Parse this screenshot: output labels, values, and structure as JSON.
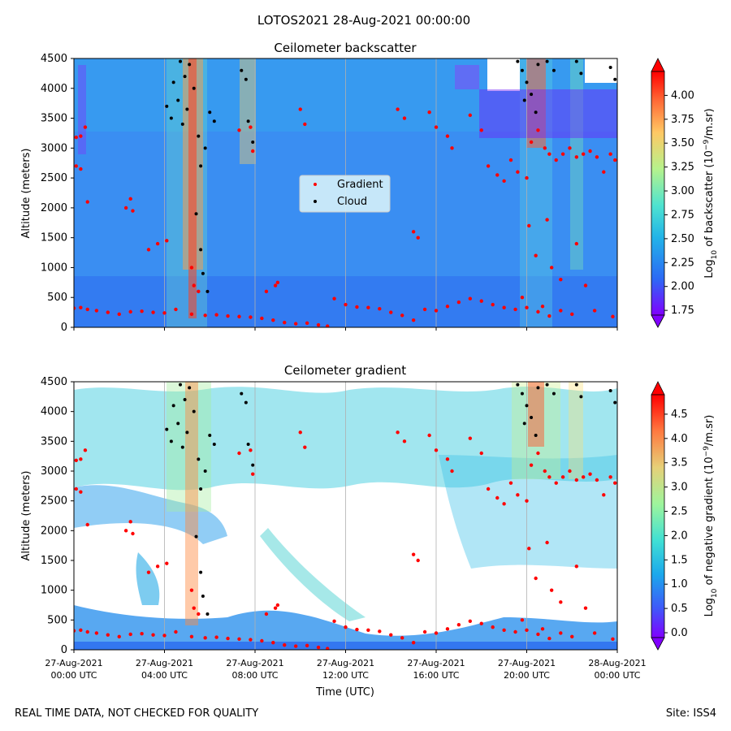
{
  "figure": {
    "title": "LOTOS2021 28-Aug-2021 00:00:00",
    "footer_left": "REAL TIME DATA, NOT CHECKED FOR QUALITY",
    "footer_right": "Site: ISS4"
  },
  "colors": {
    "gradient_points": "#ff0000",
    "cloud_points": "#000000",
    "background": "#3a8ef2",
    "grid": "#b0b0b0"
  },
  "chart_data": [
    {
      "type": "heatmap",
      "title": "Ceilometer backscatter",
      "ylabel": "Altitude (meters)",
      "xlabel": "",
      "xlim": [
        0,
        24
      ],
      "ylim": [
        0,
        4500
      ],
      "grid": true,
      "x_tick_values": [
        0,
        4,
        8,
        12,
        16,
        20,
        24
      ],
      "x_tick_labels_hidden": true,
      "y_ticks": [
        0,
        500,
        1000,
        1500,
        2000,
        2500,
        3000,
        3500,
        4000,
        4500
      ],
      "legend": {
        "placement": "center",
        "entries": [
          "Gradient",
          "Cloud"
        ]
      },
      "colorbar": {
        "label_main": "Log",
        "label_sub": "10",
        "label_rest": " of backscatter (10",
        "label_exp": "−9",
        "label_end": "/m.sr)",
        "range": [
          1.7,
          4.25
        ],
        "ticks": [
          "1.75",
          "2.00",
          "2.25",
          "2.50",
          "2.75",
          "3.00",
          "3.25",
          "3.50",
          "3.75",
          "4.00"
        ],
        "tick_values": [
          1.75,
          2.0,
          2.25,
          2.5,
          2.75,
          3.0,
          3.25,
          3.5,
          3.75,
          4.0
        ]
      },
      "series": [
        {
          "name": "Gradient",
          "points": [
            [
              0.0,
              320
            ],
            [
              0.3,
              330
            ],
            [
              0.6,
              300
            ],
            [
              1.0,
              280
            ],
            [
              1.5,
              250
            ],
            [
              2.0,
              220
            ],
            [
              2.5,
              260
            ],
            [
              3.0,
              270
            ],
            [
              3.5,
              250
            ],
            [
              4.0,
              240
            ],
            [
              4.5,
              300
            ],
            [
              5.2,
              220
            ],
            [
              5.8,
              200
            ],
            [
              6.3,
              210
            ],
            [
              6.8,
              190
            ],
            [
              7.3,
              180
            ],
            [
              7.8,
              170
            ],
            [
              8.3,
              150
            ],
            [
              8.8,
              120
            ],
            [
              9.3,
              80
            ],
            [
              9.8,
              60
            ],
            [
              10.3,
              70
            ],
            [
              10.8,
              40
            ],
            [
              11.2,
              20
            ],
            [
              11.5,
              480
            ],
            [
              12.0,
              380
            ],
            [
              12.5,
              340
            ],
            [
              13.0,
              330
            ],
            [
              13.5,
              310
            ],
            [
              14.0,
              250
            ],
            [
              14.5,
              200
            ],
            [
              15.0,
              120
            ],
            [
              15.5,
              300
            ],
            [
              16.0,
              280
            ],
            [
              16.5,
              350
            ],
            [
              17.0,
              420
            ],
            [
              17.5,
              480
            ],
            [
              18.0,
              440
            ],
            [
              18.5,
              380
            ],
            [
              19.0,
              330
            ],
            [
              19.5,
              300
            ],
            [
              20.0,
              330
            ],
            [
              20.5,
              260
            ],
            [
              21.0,
              190
            ],
            [
              21.5,
              280
            ],
            [
              22.0,
              220
            ],
            [
              23.0,
              280
            ],
            [
              23.8,
              180
            ],
            [
              0.1,
              3180
            ],
            [
              0.3,
              3200
            ],
            [
              0.5,
              3350
            ],
            [
              0.1,
              2700
            ],
            [
              0.3,
              2650
            ],
            [
              0.6,
              2100
            ],
            [
              2.3,
              2000
            ],
            [
              2.5,
              2150
            ],
            [
              2.6,
              1950
            ],
            [
              3.3,
              1300
            ],
            [
              3.7,
              1400
            ],
            [
              4.1,
              1450
            ],
            [
              5.2,
              1000
            ],
            [
              5.3,
              700
            ],
            [
              5.5,
              600
            ],
            [
              7.3,
              3300
            ],
            [
              7.8,
              3350
            ],
            [
              7.9,
              2950
            ],
            [
              8.5,
              600
            ],
            [
              8.9,
              700
            ],
            [
              9.0,
              750
            ],
            [
              10.0,
              3650
            ],
            [
              10.2,
              3400
            ],
            [
              15.0,
              1600
            ],
            [
              15.2,
              1500
            ],
            [
              14.3,
              3650
            ],
            [
              14.6,
              3500
            ],
            [
              15.7,
              3600
            ],
            [
              16.0,
              3350
            ],
            [
              16.5,
              3200
            ],
            [
              16.7,
              3000
            ],
            [
              17.5,
              3550
            ],
            [
              18.0,
              3300
            ],
            [
              18.3,
              2700
            ],
            [
              18.7,
              2550
            ],
            [
              19.0,
              2450
            ],
            [
              19.3,
              2800
            ],
            [
              19.6,
              2600
            ],
            [
              20.0,
              2500
            ],
            [
              20.2,
              3100
            ],
            [
              20.5,
              3300
            ],
            [
              20.8,
              3000
            ],
            [
              21.0,
              2900
            ],
            [
              21.3,
              2800
            ],
            [
              21.6,
              2900
            ],
            [
              21.9,
              3000
            ],
            [
              22.2,
              2850
            ],
            [
              22.5,
              2900
            ],
            [
              22.8,
              2950
            ],
            [
              23.1,
              2850
            ],
            [
              23.4,
              2600
            ],
            [
              23.7,
              2900
            ],
            [
              23.9,
              2800
            ],
            [
              20.1,
              1700
            ],
            [
              20.4,
              1200
            ],
            [
              20.9,
              1800
            ],
            [
              21.1,
              1000
            ],
            [
              21.5,
              800
            ],
            [
              22.2,
              1400
            ],
            [
              22.6,
              700
            ],
            [
              19.8,
              500
            ],
            [
              20.7,
              350
            ]
          ]
        },
        {
          "name": "Cloud",
          "points": [
            [
              4.1,
              3700
            ],
            [
              4.3,
              3500
            ],
            [
              4.4,
              4100
            ],
            [
              4.6,
              3800
            ],
            [
              4.8,
              3400
            ],
            [
              5.0,
              3650
            ],
            [
              5.1,
              4400
            ],
            [
              5.3,
              4000
            ],
            [
              5.5,
              3200
            ],
            [
              5.6,
              2700
            ],
            [
              5.4,
              1900
            ],
            [
              5.6,
              1300
            ],
            [
              5.7,
              900
            ],
            [
              5.9,
              600
            ],
            [
              6.0,
              3600
            ],
            [
              6.2,
              3450
            ],
            [
              4.7,
              4450
            ],
            [
              4.9,
              4200
            ],
            [
              5.8,
              3000
            ],
            [
              7.4,
              4300
            ],
            [
              7.6,
              4150
            ],
            [
              7.9,
              3100
            ],
            [
              7.7,
              3450
            ],
            [
              19.6,
              4450
            ],
            [
              19.8,
              4300
            ],
            [
              20.0,
              4100
            ],
            [
              20.2,
              3900
            ],
            [
              20.5,
              4400
            ],
            [
              20.9,
              4450
            ],
            [
              21.2,
              4300
            ],
            [
              20.4,
              3600
            ],
            [
              19.9,
              3800
            ],
            [
              22.2,
              4450
            ],
            [
              22.4,
              4250
            ],
            [
              23.9,
              4150
            ],
            [
              23.7,
              4350
            ]
          ]
        }
      ]
    },
    {
      "type": "heatmap",
      "title": "Ceilometer gradient",
      "ylabel": "Altitude (meters)",
      "xlabel": "Time (UTC)",
      "xlim": [
        0,
        24
      ],
      "ylim": [
        0,
        4500
      ],
      "grid": true,
      "x_ticks": [
        {
          "value": 0,
          "line1": "27-Aug-2021",
          "line2": "00:00 UTC"
        },
        {
          "value": 4,
          "line1": "27-Aug-2021",
          "line2": "04:00 UTC"
        },
        {
          "value": 8,
          "line1": "27-Aug-2021",
          "line2": "08:00 UTC"
        },
        {
          "value": 12,
          "line1": "27-Aug-2021",
          "line2": "12:00 UTC"
        },
        {
          "value": 16,
          "line1": "27-Aug-2021",
          "line2": "16:00 UTC"
        },
        {
          "value": 20,
          "line1": "27-Aug-2021",
          "line2": "20:00 UTC"
        },
        {
          "value": 24,
          "line1": "28-Aug-2021",
          "line2": "00:00 UTC"
        }
      ],
      "y_ticks": [
        0,
        500,
        1000,
        1500,
        2000,
        2500,
        3000,
        3500,
        4000,
        4500
      ],
      "colorbar": {
        "label_main": "Log",
        "label_sub": "10",
        "label_rest": " of negative gradient (10",
        "label_exp": "−9",
        "label_end": "/m.sr)",
        "range": [
          -0.1,
          4.9
        ],
        "ticks": [
          "0.0",
          "0.5",
          "1.0",
          "1.5",
          "2.0",
          "2.5",
          "3.0",
          "3.5",
          "4.0",
          "4.5"
        ],
        "tick_values": [
          0.0,
          0.5,
          1.0,
          1.5,
          2.0,
          2.5,
          3.0,
          3.5,
          4.0,
          4.5
        ]
      },
      "series": [
        {
          "name": "Gradient",
          "same_as_panel": 0
        },
        {
          "name": "Cloud",
          "same_as_panel": 0
        }
      ]
    }
  ]
}
